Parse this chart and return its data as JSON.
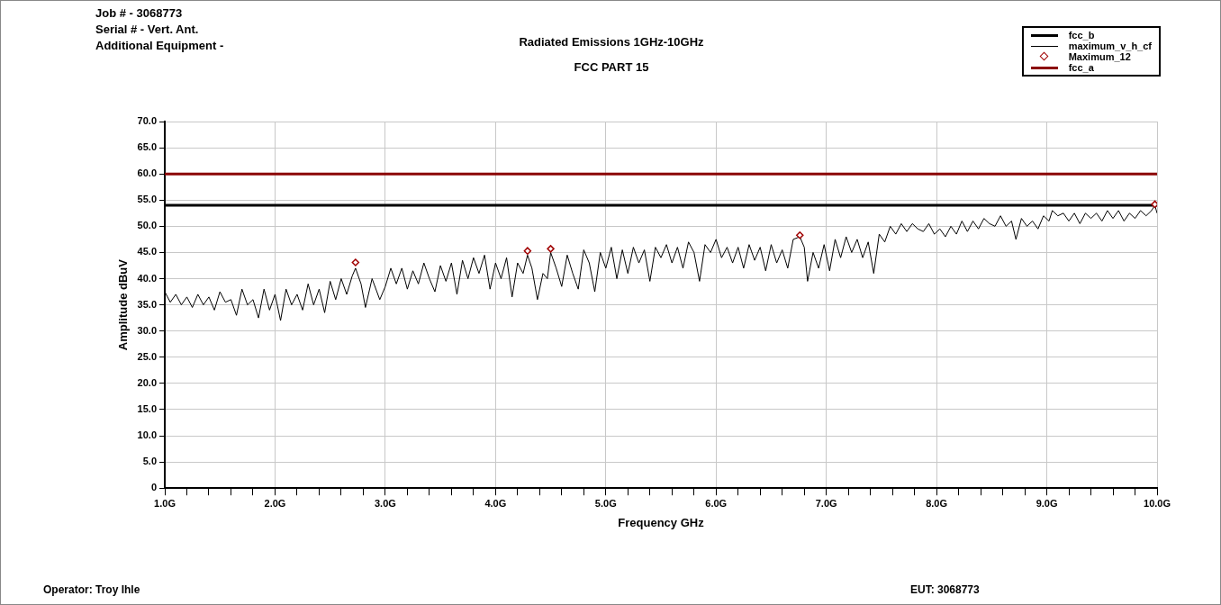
{
  "chart_data": {
    "type": "line",
    "title": "Radiated Emissions 1GHz-10GHz",
    "subtitle": "FCC PART 15",
    "xlabel": "Frequency GHz",
    "ylabel": "Amplitude dBuV",
    "annotations": [
      "Job # - 3068773",
      "Serial # - Vert. Ant.",
      "Additional Equipment -",
      "Operator: Troy Ihle",
      "EUT: 3068773"
    ],
    "xlim": [
      1.0,
      10.0
    ],
    "ylim": [
      0,
      70
    ],
    "xticks": [
      {
        "value": 1.0,
        "label": "1.0G"
      },
      {
        "value": 1.2,
        "label": null
      },
      {
        "value": 1.4,
        "label": null
      },
      {
        "value": 1.6,
        "label": null
      },
      {
        "value": 1.8,
        "label": null
      },
      {
        "value": 2.0,
        "label": "2.0G"
      },
      {
        "value": 2.2,
        "label": null
      },
      {
        "value": 2.4,
        "label": null
      },
      {
        "value": 2.6,
        "label": null
      },
      {
        "value": 2.8,
        "label": null
      },
      {
        "value": 3.0,
        "label": "3.0G"
      },
      {
        "value": 3.2,
        "label": null
      },
      {
        "value": 3.4,
        "label": null
      },
      {
        "value": 3.6,
        "label": null
      },
      {
        "value": 3.8,
        "label": null
      },
      {
        "value": 4.0,
        "label": "4.0G"
      },
      {
        "value": 4.2,
        "label": null
      },
      {
        "value": 4.4,
        "label": null
      },
      {
        "value": 4.6,
        "label": null
      },
      {
        "value": 4.8,
        "label": null
      },
      {
        "value": 5.0,
        "label": "5.0G"
      },
      {
        "value": 5.2,
        "label": null
      },
      {
        "value": 5.4,
        "label": null
      },
      {
        "value": 5.6,
        "label": null
      },
      {
        "value": 5.8,
        "label": null
      },
      {
        "value": 6.0,
        "label": "6.0G"
      },
      {
        "value": 6.2,
        "label": null
      },
      {
        "value": 6.4,
        "label": null
      },
      {
        "value": 6.6,
        "label": null
      },
      {
        "value": 6.8,
        "label": null
      },
      {
        "value": 7.0,
        "label": "7.0G"
      },
      {
        "value": 7.2,
        "label": null
      },
      {
        "value": 7.4,
        "label": null
      },
      {
        "value": 7.6,
        "label": null
      },
      {
        "value": 7.8,
        "label": null
      },
      {
        "value": 8.0,
        "label": "8.0G"
      },
      {
        "value": 8.2,
        "label": null
      },
      {
        "value": 8.4,
        "label": null
      },
      {
        "value": 8.6,
        "label": null
      },
      {
        "value": 8.8,
        "label": null
      },
      {
        "value": 9.0,
        "label": "9.0G"
      },
      {
        "value": 9.2,
        "label": null
      },
      {
        "value": 9.4,
        "label": null
      },
      {
        "value": 9.6,
        "label": null
      },
      {
        "value": 9.8,
        "label": null
      },
      {
        "value": 10.0,
        "label": "10.0G"
      }
    ],
    "yticks": [
      0,
      {
        "value": 5,
        "label": "5.0"
      },
      {
        "value": 10,
        "label": "10.0"
      },
      {
        "value": 15,
        "label": "15.0"
      },
      {
        "value": 20,
        "label": "20.0"
      },
      {
        "value": 25,
        "label": "25.0"
      },
      {
        "value": 30,
        "label": "30.0"
      },
      {
        "value": 35,
        "label": "35.0"
      },
      {
        "value": 40,
        "label": "40.0"
      },
      {
        "value": 45,
        "label": "45.0"
      },
      {
        "value": 50,
        "label": "50.0"
      },
      {
        "value": 55,
        "label": "55.0"
      },
      {
        "value": 60,
        "label": "60.0"
      },
      {
        "value": 65,
        "label": "65.0"
      },
      {
        "value": 70,
        "label": "70.0"
      }
    ],
    "grid": true,
    "legend": "top right",
    "series": [
      {
        "name": "fcc_b",
        "color": "#000000",
        "marker": "none",
        "x": [
          1.0,
          10.0
        ],
        "values": [
          54,
          54
        ]
      },
      {
        "name": "maximum_v_h_cf",
        "color": "#000000",
        "marker": "none",
        "x": [
          1.0,
          1.05,
          1.1,
          1.15,
          1.2,
          1.25,
          1.3,
          1.35,
          1.4,
          1.45,
          1.5,
          1.55,
          1.6,
          1.65,
          1.7,
          1.75,
          1.8,
          1.85,
          1.9,
          1.95,
          2.0,
          2.05,
          2.1,
          2.15,
          2.2,
          2.25,
          2.3,
          2.35,
          2.4,
          2.45,
          2.5,
          2.55,
          2.6,
          2.65,
          2.7,
          2.73,
          2.78,
          2.82,
          2.88,
          2.95,
          3.0,
          3.05,
          3.1,
          3.15,
          3.2,
          3.25,
          3.3,
          3.35,
          3.4,
          3.45,
          3.5,
          3.55,
          3.6,
          3.65,
          3.7,
          3.75,
          3.8,
          3.85,
          3.9,
          3.95,
          4.0,
          4.05,
          4.1,
          4.15,
          4.2,
          4.25,
          4.29,
          4.33,
          4.38,
          4.43,
          4.47,
          4.5,
          4.55,
          4.6,
          4.65,
          4.7,
          4.75,
          4.8,
          4.85,
          4.9,
          4.95,
          5.0,
          5.05,
          5.1,
          5.15,
          5.2,
          5.25,
          5.3,
          5.35,
          5.4,
          5.45,
          5.5,
          5.55,
          5.6,
          5.65,
          5.7,
          5.75,
          5.8,
          5.85,
          5.9,
          5.95,
          6.0,
          6.05,
          6.1,
          6.15,
          6.2,
          6.25,
          6.3,
          6.35,
          6.4,
          6.45,
          6.5,
          6.55,
          6.6,
          6.65,
          6.7,
          6.76,
          6.8,
          6.83,
          6.88,
          6.93,
          6.98,
          7.03,
          7.08,
          7.13,
          7.18,
          7.23,
          7.28,
          7.33,
          7.38,
          7.43,
          7.48,
          7.53,
          7.58,
          7.63,
          7.68,
          7.73,
          7.78,
          7.83,
          7.88,
          7.93,
          7.98,
          8.03,
          8.08,
          8.13,
          8.18,
          8.23,
          8.28,
          8.33,
          8.38,
          8.43,
          8.48,
          8.53,
          8.58,
          8.63,
          8.68,
          8.72,
          8.77,
          8.82,
          8.87,
          8.92,
          8.97,
          9.02,
          9.05,
          9.1,
          9.15,
          9.2,
          9.25,
          9.3,
          9.35,
          9.4,
          9.45,
          9.5,
          9.55,
          9.6,
          9.65,
          9.7,
          9.75,
          9.8,
          9.85,
          9.9,
          9.95,
          9.98,
          10.0
        ],
        "values": [
          37.5,
          35.5,
          37,
          35,
          36.5,
          34.5,
          37,
          35,
          36.5,
          34,
          37.5,
          35.5,
          36,
          33,
          38,
          35,
          36,
          32.5,
          38,
          34,
          37,
          32,
          38,
          35,
          37,
          34,
          39,
          35,
          38,
          33.5,
          39.5,
          36,
          40,
          37,
          40.5,
          42,
          39,
          34.5,
          40,
          36,
          38.5,
          42,
          39,
          42,
          38,
          41.5,
          39,
          43,
          40,
          37.5,
          42.5,
          39.5,
          43,
          37,
          43.5,
          40,
          44,
          41,
          44.5,
          38,
          43,
          40,
          44,
          36.5,
          43,
          41,
          44.5,
          42,
          36,
          41,
          40,
          45,
          42,
          38.5,
          44.5,
          41,
          38,
          45.5,
          43,
          37.5,
          45,
          42,
          46,
          40,
          45.5,
          41,
          46,
          43,
          45.5,
          39.5,
          46,
          44,
          46.5,
          43,
          46,
          42,
          47,
          45,
          39.5,
          46.5,
          45,
          47.5,
          44,
          46,
          43,
          46,
          42,
          46.5,
          43.5,
          46,
          41.5,
          46.5,
          43,
          45.5,
          42,
          47.5,
          48,
          46,
          39.5,
          45,
          42,
          46.5,
          41.5,
          47.5,
          44,
          48,
          45,
          47.5,
          44,
          47,
          41,
          48.5,
          47,
          50,
          48.5,
          50.5,
          49,
          50.5,
          49.5,
          49,
          50.5,
          48.5,
          49.5,
          48,
          50,
          48.5,
          51,
          49,
          51,
          49.5,
          51.5,
          50.5,
          50,
          52,
          50,
          51,
          47.5,
          51.5,
          50,
          51,
          49.5,
          52,
          51,
          53,
          52,
          52.5,
          51,
          52.5,
          50.5,
          52.5,
          51.5,
          52.5,
          51,
          53,
          51.5,
          53,
          51,
          52.5,
          51.5,
          53,
          52,
          53,
          54,
          52.5
        ]
      },
      {
        "name": "Maximum_12",
        "type": "scatter",
        "color": "#a00000",
        "marker": "diamond",
        "x": [
          2.73,
          4.29,
          4.5,
          6.76,
          9.98
        ],
        "values": [
          43.1,
          45.3,
          45.7,
          48.3,
          54.2
        ]
      },
      {
        "name": "fcc_a",
        "color": "#8b0000",
        "marker": "none",
        "x": [
          1.0,
          10.0
        ],
        "values": [
          60,
          60
        ]
      }
    ]
  }
}
